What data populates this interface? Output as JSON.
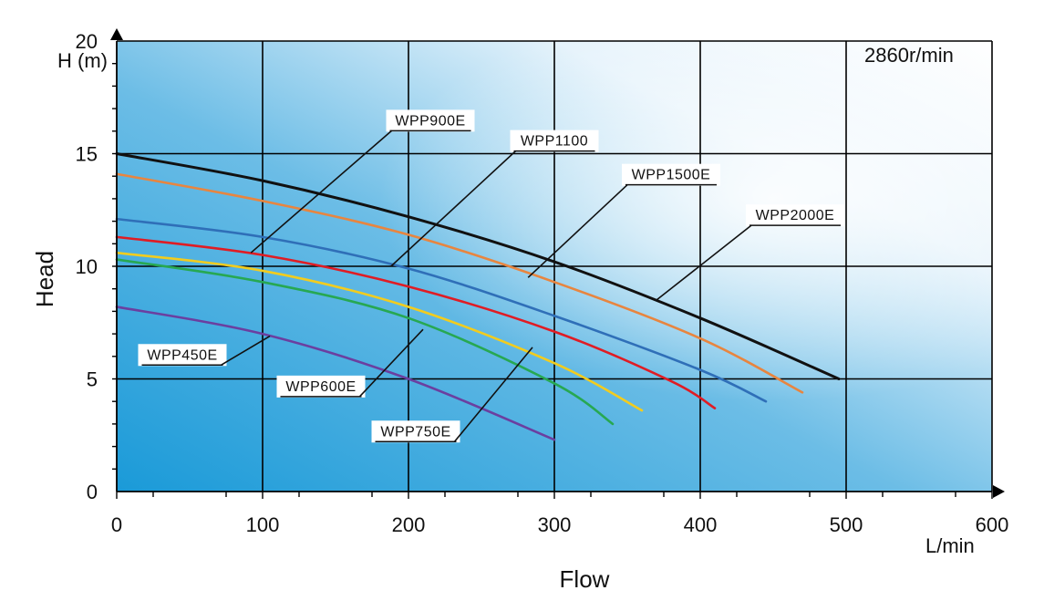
{
  "chart_data": {
    "type": "line",
    "title": "",
    "xlabel": "Flow",
    "ylabel": "Head",
    "x_unit": "L/min",
    "y_unit": "H (m)",
    "speed_note": "2860r/min",
    "xlim": [
      0,
      600
    ],
    "ylim": [
      0,
      20
    ],
    "x_ticks": [
      0,
      100,
      200,
      300,
      400,
      500,
      600
    ],
    "y_ticks": [
      0,
      5,
      10,
      15,
      20
    ],
    "grid": true,
    "series": [
      {
        "name": "WPP2000E",
        "color": "#111111",
        "x": [
          0,
          100,
          200,
          300,
          400,
          495
        ],
        "y": [
          15.0,
          13.8,
          12.2,
          10.2,
          7.7,
          5.0
        ]
      },
      {
        "name": "WPP1500E",
        "color": "#e8853f",
        "x": [
          0,
          100,
          200,
          300,
          400,
          470
        ],
        "y": [
          14.1,
          12.9,
          11.4,
          9.3,
          6.8,
          4.4
        ]
      },
      {
        "name": "WPP1100",
        "color": "#2f6fb8",
        "x": [
          0,
          100,
          200,
          300,
          400,
          445
        ],
        "y": [
          12.1,
          11.3,
          9.9,
          7.8,
          5.4,
          4.0
        ]
      },
      {
        "name": "WPP900E",
        "color": "#e01c24",
        "x": [
          0,
          100,
          200,
          300,
          380,
          410
        ],
        "y": [
          11.3,
          10.5,
          9.1,
          7.1,
          4.9,
          3.7
        ]
      },
      {
        "name": "WPP750E",
        "color": "#f2cc1e",
        "x": [
          0,
          100,
          200,
          300,
          360
        ],
        "y": [
          10.6,
          9.8,
          8.2,
          5.7,
          3.6
        ]
      },
      {
        "name": "WPP600E",
        "color": "#27a852",
        "x": [
          0,
          100,
          200,
          300,
          340
        ],
        "y": [
          10.3,
          9.3,
          7.7,
          4.8,
          3.0
        ]
      },
      {
        "name": "WPP450E",
        "color": "#6b3fa0",
        "x": [
          0,
          100,
          200,
          300
        ],
        "y": [
          8.2,
          7.0,
          5.0,
          2.3
        ]
      }
    ],
    "callouts": [
      {
        "label": "WPP900E",
        "text_at": [
          215,
          16.3
        ],
        "points_to": [
          92,
          10.6
        ]
      },
      {
        "label": "WPP1100",
        "text_at": [
          300,
          15.4
        ],
        "points_to": [
          188,
          10.0
        ]
      },
      {
        "label": "WPP1500E",
        "text_at": [
          380,
          13.9
        ],
        "points_to": [
          282,
          9.5
        ]
      },
      {
        "label": "WPP2000E",
        "text_at": [
          465,
          12.1
        ],
        "points_to": [
          370,
          8.5
        ]
      },
      {
        "label": "WPP450E",
        "text_at": [
          45,
          5.9
        ],
        "points_to": [
          105,
          6.9
        ]
      },
      {
        "label": "WPP600E",
        "text_at": [
          140,
          4.5
        ],
        "points_to": [
          210,
          7.2
        ]
      },
      {
        "label": "WPP750E",
        "text_at": [
          205,
          2.5
        ],
        "points_to": [
          285,
          6.4
        ]
      }
    ]
  }
}
